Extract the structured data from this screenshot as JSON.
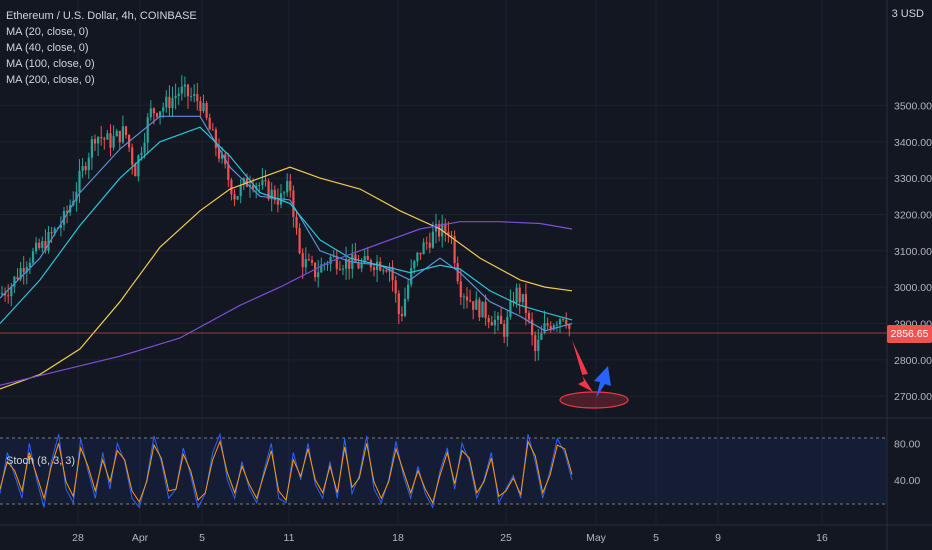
{
  "header": {
    "symbol_title": "Ethereum / U.S. Dollar, 4h, COINBASE",
    "currency": "USD",
    "currency_prefix": "3"
  },
  "legend": {
    "indicators": [
      "MA (20, close, 0)",
      "MA (40, close, 0)",
      "MA (100, close, 0)",
      "MA (200, close, 0)"
    ]
  },
  "oscillator": {
    "label": "Stoch (8, 3, 3)"
  },
  "last_price_label": "2856.65",
  "colors": {
    "background": "#131722",
    "bull": "#26a69a",
    "bear": "#ef5350",
    "ma20": "#5b8fd6",
    "ma40": "#26c6da",
    "ma100": "#f2c94c",
    "ma200": "#7b4fd8",
    "stoch_k": "#2962ff",
    "stoch_d": "#ff9800",
    "arrow_down": "#f23645",
    "arrow_up": "#2962ff"
  },
  "chart_data": [
    {
      "type": "candlestick",
      "title": "Ethereum / U.S. Dollar, 4h, COINBASE",
      "x_ticks": [
        "28",
        "Apr",
        "5",
        "11",
        "18",
        "25",
        "May",
        "5",
        "9",
        "16"
      ],
      "y_ticks": [
        "3500.00",
        "3400.00",
        "3300.00",
        "3200.00",
        "3100.00",
        "3000.00",
        "2900.00",
        "2800.00",
        "2700.00"
      ],
      "ylim": [
        2640,
        3790
      ],
      "last_price": 2856.65,
      "close_path": [
        [
          0,
          2980
        ],
        [
          10,
          3000
        ],
        [
          25,
          3070
        ],
        [
          45,
          3120
        ],
        [
          65,
          3190
        ],
        [
          80,
          3300
        ],
        [
          95,
          3420
        ],
        [
          110,
          3400
        ],
        [
          125,
          3430
        ],
        [
          135,
          3320
        ],
        [
          150,
          3480
        ],
        [
          165,
          3500
        ],
        [
          180,
          3540
        ],
        [
          200,
          3510
        ],
        [
          210,
          3430
        ],
        [
          220,
          3360
        ],
        [
          235,
          3250
        ],
        [
          250,
          3300
        ],
        [
          265,
          3270
        ],
        [
          280,
          3240
        ],
        [
          290,
          3280
        ],
        [
          300,
          3080
        ],
        [
          315,
          3040
        ],
        [
          330,
          3080
        ],
        [
          345,
          3070
        ],
        [
          360,
          3060
        ],
        [
          375,
          3070
        ],
        [
          390,
          3060
        ],
        [
          400,
          2910
        ],
        [
          410,
          3030
        ],
        [
          420,
          3100
        ],
        [
          435,
          3150
        ],
        [
          450,
          3160
        ],
        [
          460,
          3000
        ],
        [
          475,
          2950
        ],
        [
          490,
          2920
        ],
        [
          505,
          2880
        ],
        [
          515,
          2990
        ],
        [
          525,
          2950
        ],
        [
          535,
          2820
        ],
        [
          545,
          2890
        ],
        [
          555,
          2910
        ],
        [
          565,
          2930
        ],
        [
          572,
          2856.65
        ]
      ],
      "series": [
        {
          "name": "MA (20, close, 0)",
          "points": [
            [
              0,
              2970
            ],
            [
              40,
              3080
            ],
            [
              80,
              3260
            ],
            [
              120,
              3380
            ],
            [
              160,
              3470
            ],
            [
              200,
              3470
            ],
            [
              230,
              3330
            ],
            [
              260,
              3250
            ],
            [
              290,
              3240
            ],
            [
              320,
              3100
            ],
            [
              350,
              3070
            ],
            [
              380,
              3060
            ],
            [
              410,
              3020
            ],
            [
              440,
              3080
            ],
            [
              460,
              3040
            ],
            [
              490,
              2960
            ],
            [
              520,
              2920
            ],
            [
              545,
              2880
            ],
            [
              572,
              2900
            ]
          ]
        },
        {
          "name": "MA (40, close, 0)",
          "points": [
            [
              0,
              2900
            ],
            [
              40,
              3020
            ],
            [
              80,
              3170
            ],
            [
              120,
              3300
            ],
            [
              160,
              3400
            ],
            [
              200,
              3440
            ],
            [
              230,
              3360
            ],
            [
              260,
              3260
            ],
            [
              290,
              3230
            ],
            [
              320,
              3130
            ],
            [
              350,
              3080
            ],
            [
              380,
              3060
            ],
            [
              410,
              3040
            ],
            [
              440,
              3060
            ],
            [
              460,
              3050
            ],
            [
              490,
              2990
            ],
            [
              520,
              2950
            ],
            [
              545,
              2930
            ],
            [
              572,
              2910
            ]
          ]
        },
        {
          "name": "MA (100, close, 0)",
          "points": [
            [
              0,
              2720
            ],
            [
              40,
              2760
            ],
            [
              80,
              2830
            ],
            [
              120,
              2960
            ],
            [
              160,
              3110
            ],
            [
              200,
              3210
            ],
            [
              230,
              3270
            ],
            [
              260,
              3300
            ],
            [
              290,
              3330
            ],
            [
              320,
              3300
            ],
            [
              360,
              3270
            ],
            [
              400,
              3210
            ],
            [
              440,
              3160
            ],
            [
              480,
              3080
            ],
            [
              520,
              3020
            ],
            [
              545,
              3000
            ],
            [
              572,
              2990
            ]
          ]
        },
        {
          "name": "MA (200, close, 0)",
          "points": [
            [
              0,
              2730
            ],
            [
              60,
              2770
            ],
            [
              120,
              2810
            ],
            [
              180,
              2860
            ],
            [
              240,
              2950
            ],
            [
              280,
              3000
            ],
            [
              330,
              3070
            ],
            [
              380,
              3120
            ],
            [
              420,
              3160
            ],
            [
              460,
              3180
            ],
            [
              500,
              3180
            ],
            [
              540,
              3175
            ],
            [
              572,
              3160
            ]
          ]
        }
      ]
    },
    {
      "type": "line",
      "title": "Stoch (8, 3, 3)",
      "y_ticks": [
        "80.00",
        "40.00"
      ],
      "levels": [
        80,
        20
      ],
      "ylim": [
        5,
        100
      ],
      "series": [
        {
          "name": "%K",
          "values": [
            25,
            70,
            45,
            20,
            80,
            40,
            10,
            60,
            90,
            30,
            15,
            85,
            50,
            20,
            70,
            30,
            80,
            60,
            20,
            10,
            40,
            88,
            60,
            20,
            30,
            75,
            45,
            10,
            25,
            70,
            90,
            40,
            20,
            60,
            30,
            15,
            50,
            80,
            20,
            15,
            70,
            40,
            80,
            35,
            20,
            60,
            20,
            85,
            25,
            45,
            88,
            30,
            15,
            40,
            82,
            45,
            20,
            55,
            25,
            10,
            50,
            75,
            30,
            80,
            60,
            20,
            40,
            70,
            15,
            30,
            45,
            20,
            90,
            60,
            20,
            50,
            85,
            70,
            40
          ]
        },
        {
          "name": "%D",
          "values": [
            30,
            60,
            50,
            28,
            70,
            45,
            20,
            55,
            80,
            38,
            22,
            75,
            55,
            28,
            62,
            38,
            72,
            62,
            28,
            16,
            38,
            78,
            64,
            28,
            30,
            68,
            50,
            18,
            26,
            62,
            82,
            48,
            26,
            55,
            35,
            20,
            46,
            72,
            28,
            18,
            62,
            44,
            74,
            40,
            26,
            55,
            26,
            76,
            32,
            42,
            80,
            38,
            20,
            38,
            74,
            50,
            26,
            50,
            30,
            15,
            45,
            70,
            36,
            72,
            64,
            26,
            38,
            64,
            22,
            28,
            42,
            24,
            82,
            66,
            26,
            45,
            78,
            74,
            46
          ]
        }
      ]
    }
  ]
}
